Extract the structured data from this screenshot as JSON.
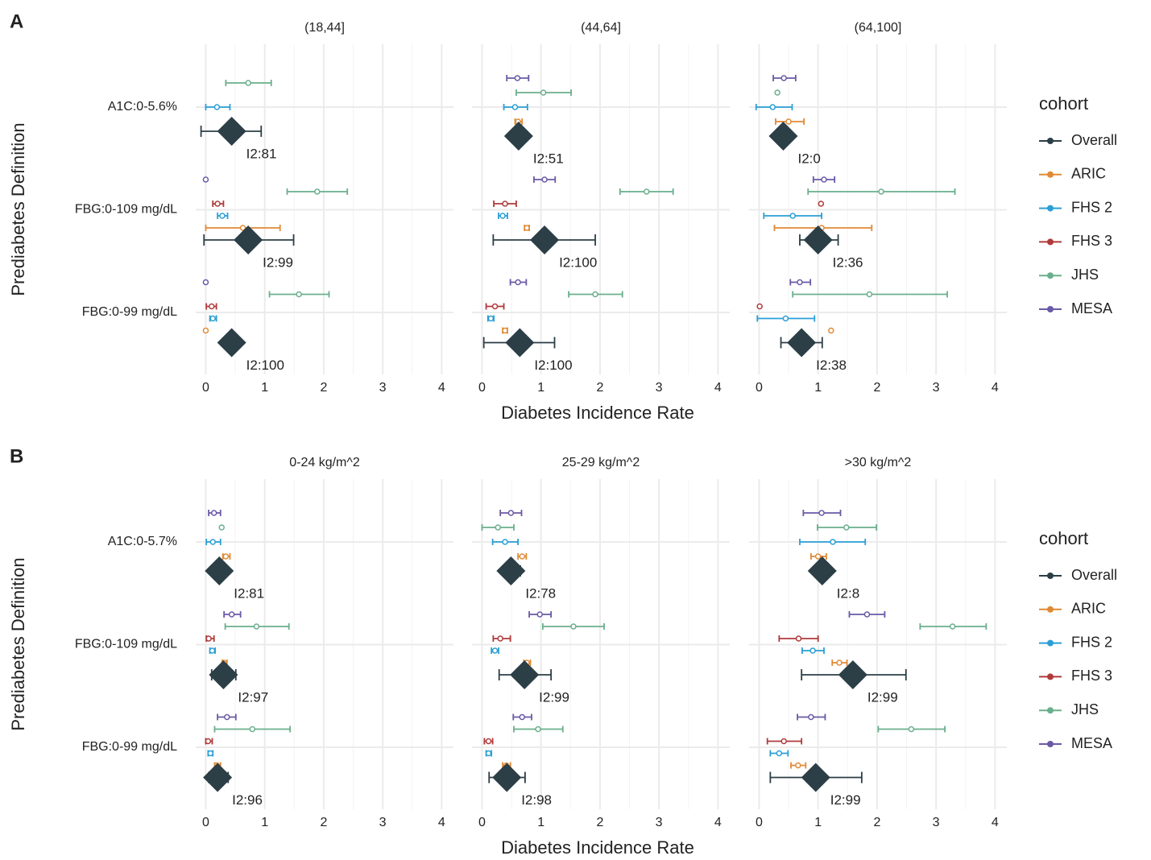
{
  "chart_data": [
    {
      "type": "forest",
      "label": "A",
      "x_label": "Diabetes Incidence Rate",
      "y_label": "Prediabetes Definition",
      "legend_title": "cohort",
      "categories": [
        "A1C:0-5.6%",
        "FBG:0-109 mg/dL",
        "FBG:0-99 mg/dL"
      ],
      "xlim": [
        -0.17,
        4.2
      ],
      "xticks": [
        0,
        1,
        2,
        3,
        4
      ],
      "grid": true,
      "series": [
        {
          "name": "Overall",
          "color": "#2c3e46"
        },
        {
          "name": "ARIC",
          "color": "#e08a35"
        },
        {
          "name": "FHS 2",
          "color": "#2a9fd6"
        },
        {
          "name": "FHS 3",
          "color": "#b03a3a"
        },
        {
          "name": "JHS",
          "color": "#6aaf8c"
        },
        {
          "name": "MESA",
          "color": "#6a5aa6"
        }
      ],
      "facets": [
        {
          "title": "(18,44]",
          "i2_labels": [
            "I2:81",
            "I2:99",
            "I2:100"
          ],
          "series": [
            {
              "values": [
                0.44,
                0.72,
                0.44
              ],
              "lo": [
                -0.08,
                -0.03,
                null
              ],
              "hi": [
                0.94,
                1.49,
                null
              ]
            },
            {
              "values": [
                null,
                0.63,
                0
              ],
              "lo": [
                null,
                0,
                null
              ],
              "hi": [
                null,
                1.26,
                null
              ]
            },
            {
              "values": [
                0.19,
                0.28,
                0.12
              ],
              "lo": [
                0,
                0.2,
                0.07
              ],
              "hi": [
                0.41,
                0.37,
                0.18
              ]
            },
            {
              "values": [
                null,
                0.2,
                0.1
              ],
              "lo": [
                null,
                0.12,
                0.01
              ],
              "hi": [
                null,
                0.3,
                0.18
              ]
            },
            {
              "values": [
                0.72,
                1.89,
                1.58
              ],
              "lo": [
                0.34,
                1.38,
                1.08
              ],
              "hi": [
                1.11,
                2.4,
                2.09
              ]
            },
            {
              "values": [
                null,
                0,
                0
              ],
              "lo": [
                null,
                null,
                null
              ],
              "hi": [
                null,
                null,
                null
              ]
            }
          ]
        },
        {
          "title": "(44,64]",
          "i2_labels": [
            "I2:51",
            "I2:100",
            "I2:100"
          ],
          "series": [
            {
              "values": [
                0.62,
                1.06,
                0.64
              ],
              "lo": [
                null,
                0.19,
                0.03
              ],
              "hi": [
                null,
                1.92,
                1.23
              ]
            },
            {
              "values": [
                0.61,
                0.76,
                0.39
              ],
              "lo": [
                0.56,
                0.72,
                0.35
              ],
              "hi": [
                0.68,
                0.8,
                0.43
              ]
            },
            {
              "values": [
                0.56,
                0.35,
                0.15
              ],
              "lo": [
                0.37,
                0.28,
                0.1
              ],
              "hi": [
                0.77,
                0.43,
                0.2
              ]
            },
            {
              "values": [
                null,
                0.39,
                0.22
              ],
              "lo": [
                null,
                0.2,
                0.07
              ],
              "hi": [
                null,
                0.58,
                0.37
              ]
            },
            {
              "values": [
                1.04,
                2.79,
                1.92
              ],
              "lo": [
                0.58,
                2.34,
                1.47
              ],
              "hi": [
                1.51,
                3.24,
                2.38
              ]
            },
            {
              "values": [
                0.6,
                1.06,
                0.61
              ],
              "lo": [
                0.42,
                0.88,
                0.48
              ],
              "hi": [
                0.79,
                1.24,
                0.75
              ]
            }
          ]
        },
        {
          "title": "(64,100]",
          "i2_labels": [
            "I2:0",
            "I2:36",
            "I2:38"
          ],
          "series": [
            {
              "values": [
                0.41,
                1.0,
                0.72
              ],
              "lo": [
                null,
                0.69,
                0.37
              ],
              "hi": [
                null,
                1.34,
                1.07
              ]
            },
            {
              "values": [
                0.5,
                1.06,
                1.22
              ],
              "lo": [
                0.28,
                0.26,
                null
              ],
              "hi": [
                0.76,
                1.91,
                null
              ]
            },
            {
              "values": [
                0.23,
                0.57,
                0.45
              ],
              "lo": [
                -0.05,
                0.08,
                -0.03
              ],
              "hi": [
                0.56,
                1.06,
                0.94
              ]
            },
            {
              "values": [
                null,
                1.05,
                0.01
              ],
              "lo": [
                null,
                null,
                null
              ],
              "hi": [
                null,
                null,
                null
              ]
            },
            {
              "values": [
                0.31,
                2.07,
                1.87
              ],
              "lo": [
                null,
                0.83,
                0.57
              ],
              "hi": [
                null,
                3.32,
                3.19
              ]
            },
            {
              "values": [
                0.42,
                1.1,
                0.69
              ],
              "lo": [
                0.24,
                0.92,
                0.53
              ],
              "hi": [
                0.62,
                1.28,
                0.87
              ]
            }
          ]
        }
      ]
    },
    {
      "type": "forest",
      "label": "B",
      "x_label": "Diabetes Incidence Rate",
      "y_label": "Prediabetes Definition",
      "legend_title": "cohort",
      "categories": [
        "A1C:0-5.7%",
        "FBG:0-109 mg/dL",
        "FBG:0-99 mg/dL"
      ],
      "xlim": [
        -0.17,
        4.2
      ],
      "xticks": [
        0,
        1,
        2,
        3,
        4
      ],
      "grid": true,
      "series": [
        {
          "name": "Overall",
          "color": "#2c3e46"
        },
        {
          "name": "ARIC",
          "color": "#e08a35"
        },
        {
          "name": "FHS 2",
          "color": "#2a9fd6"
        },
        {
          "name": "FHS 3",
          "color": "#b03a3a"
        },
        {
          "name": "JHS",
          "color": "#6aaf8c"
        },
        {
          "name": "MESA",
          "color": "#6a5aa6"
        }
      ],
      "facets": [
        {
          "title": "0-24 kg/m^2",
          "i2_labels": [
            "I2:81",
            "I2:97",
            "I2:96"
          ],
          "series": [
            {
              "values": [
                0.23,
                0.3,
                0.2
              ],
              "lo": [
                null,
                0.1,
                0.05
              ],
              "hi": [
                null,
                0.51,
                0.38
              ]
            },
            {
              "values": [
                0.34,
                0.31,
                0.19
              ],
              "lo": [
                0.29,
                0.28,
                0.15
              ],
              "hi": [
                0.41,
                0.36,
                0.25
              ]
            },
            {
              "values": [
                0.12,
                0.11,
                0.08
              ],
              "lo": [
                0.01,
                0.07,
                0.04
              ],
              "hi": [
                0.25,
                0.16,
                0.12
              ]
            },
            {
              "values": [
                null,
                0.05,
                0.04
              ],
              "lo": [
                null,
                0.01,
                0
              ],
              "hi": [
                null,
                0.14,
                0.11
              ]
            },
            {
              "values": [
                0.27,
                0.86,
                0.79
              ],
              "lo": [
                null,
                0.33,
                0.15
              ],
              "hi": [
                null,
                1.41,
                1.43
              ]
            },
            {
              "values": [
                0.14,
                0.44,
                0.36
              ],
              "lo": [
                0.05,
                0.31,
                0.2
              ],
              "hi": [
                0.25,
                0.59,
                0.51
              ]
            }
          ]
        },
        {
          "title": "25-29 kg/m^2",
          "i2_labels": [
            "I2:78",
            "I2:99",
            "I2:98"
          ],
          "series": [
            {
              "values": [
                0.49,
                0.72,
                0.42
              ],
              "lo": [
                0.35,
                0.29,
                0.12
              ],
              "hi": [
                0.65,
                1.17,
                0.73
              ]
            },
            {
              "values": [
                0.68,
                0.76,
                0.41
              ],
              "lo": [
                0.61,
                0.71,
                0.35
              ],
              "hi": [
                0.75,
                0.82,
                0.48
              ]
            },
            {
              "values": [
                0.39,
                0.22,
                0.11
              ],
              "lo": [
                0.18,
                0.16,
                0.07
              ],
              "hi": [
                0.61,
                0.28,
                0.16
              ]
            },
            {
              "values": [
                null,
                0.31,
                0.11
              ],
              "lo": [
                null,
                0.19,
                0.04
              ],
              "hi": [
                null,
                0.48,
                0.18
              ]
            },
            {
              "values": [
                0.27,
                1.55,
                0.95
              ],
              "lo": [
                0,
                1.03,
                0.54
              ],
              "hi": [
                0.54,
                2.07,
                1.37
              ]
            },
            {
              "values": [
                0.49,
                0.98,
                0.68
              ],
              "lo": [
                0.31,
                0.8,
                0.53
              ],
              "hi": [
                0.67,
                1.17,
                0.84
              ]
            }
          ]
        },
        {
          "title": ">30 kg/m^2",
          "i2_labels": [
            "I2:8",
            "I2:99",
            "I2:99"
          ],
          "series": [
            {
              "values": [
                1.07,
                1.59,
                0.96
              ],
              "lo": [
                null,
                0.72,
                0.19
              ],
              "hi": [
                null,
                2.49,
                1.74
              ]
            },
            {
              "values": [
                1.0,
                1.36,
                0.66
              ],
              "lo": [
                0.88,
                1.24,
                0.54
              ],
              "hi": [
                1.14,
                1.49,
                0.79
              ]
            },
            {
              "values": [
                1.25,
                0.91,
                0.34
              ],
              "lo": [
                0.69,
                0.73,
                0.19
              ],
              "hi": [
                1.8,
                1.1,
                0.49
              ]
            },
            {
              "values": [
                null,
                0.67,
                0.42
              ],
              "lo": [
                null,
                0.34,
                0.14
              ],
              "hi": [
                null,
                1.0,
                0.72
              ]
            },
            {
              "values": [
                1.48,
                3.28,
                2.58
              ],
              "lo": [
                0.99,
                2.73,
                2.02
              ],
              "hi": [
                1.99,
                3.85,
                3.15
              ]
            },
            {
              "values": [
                1.06,
                1.83,
                0.88
              ],
              "lo": [
                0.75,
                1.53,
                0.65
              ],
              "hi": [
                1.38,
                2.13,
                1.12
              ]
            }
          ]
        }
      ]
    }
  ]
}
